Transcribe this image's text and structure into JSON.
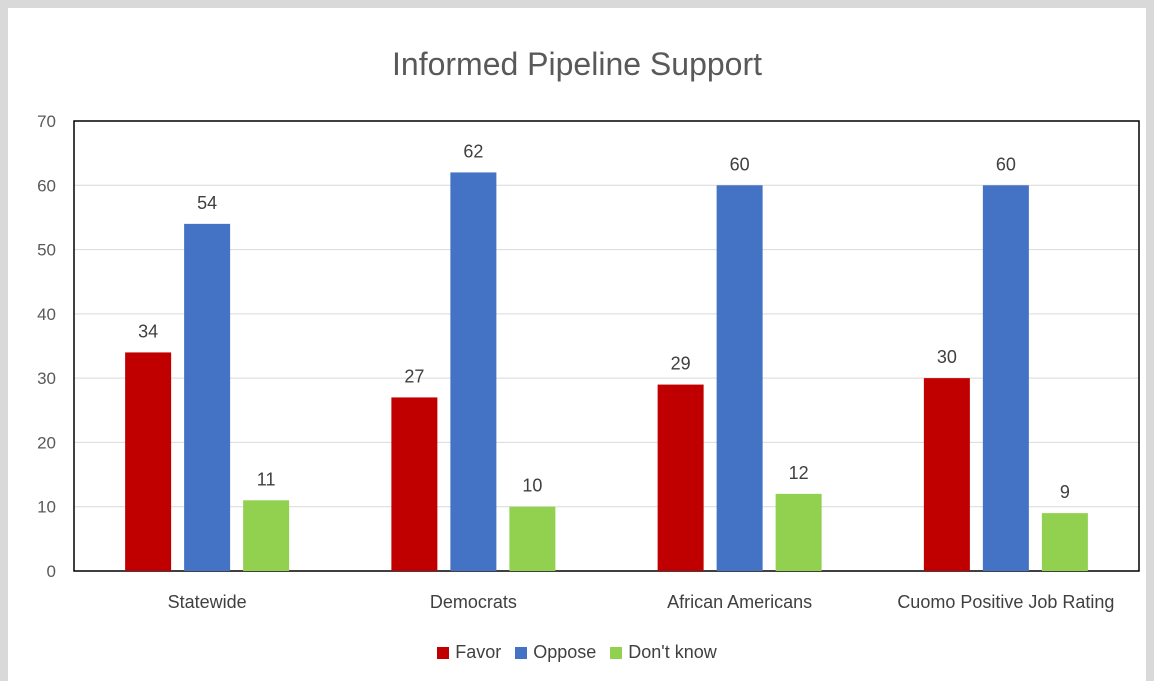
{
  "chart_data": {
    "type": "bar",
    "title": "Informed Pipeline Support",
    "categories": [
      "Statewide",
      "Democrats",
      "African Americans",
      "Cuomo Positive Job Rating"
    ],
    "series": [
      {
        "name": "Favor",
        "color": "#c00000",
        "values": [
          34,
          27,
          29,
          30
        ]
      },
      {
        "name": "Oppose",
        "color": "#4472c4",
        "values": [
          54,
          62,
          60,
          60
        ]
      },
      {
        "name": "Don't know",
        "color": "#92d050",
        "values": [
          11,
          10,
          12,
          9
        ]
      }
    ],
    "xlabel": "",
    "ylabel": "",
    "ylim": [
      0,
      70
    ],
    "yticks": [
      0,
      10,
      20,
      30,
      40,
      50,
      60,
      70
    ],
    "grid": true,
    "legend": "bottom"
  }
}
